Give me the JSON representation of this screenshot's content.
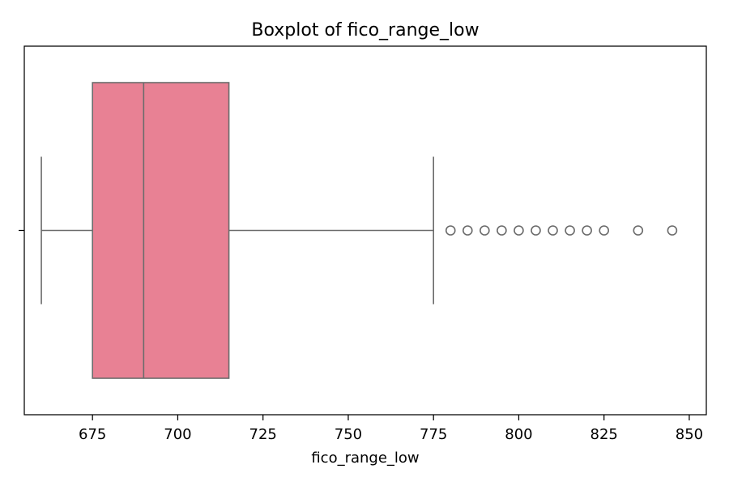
{
  "chart_data": {
    "type": "boxplot",
    "title": "Boxplot of fico_range_low",
    "xlabel": "fico_range_low",
    "ylabel": "",
    "orientation": "horizontal",
    "xlim": [
      655,
      855
    ],
    "xticks": [
      675,
      700,
      725,
      750,
      775,
      800,
      825,
      850
    ],
    "grid": false,
    "box": {
      "whisker_low": 660,
      "q1": 675,
      "median": 690,
      "q3": 715,
      "whisker_high": 775,
      "fill_color": "#e88194",
      "line_color": "#6b6b6b"
    },
    "outliers": [
      780,
      785,
      790,
      795,
      800,
      805,
      810,
      815,
      820,
      825,
      835,
      845
    ]
  }
}
